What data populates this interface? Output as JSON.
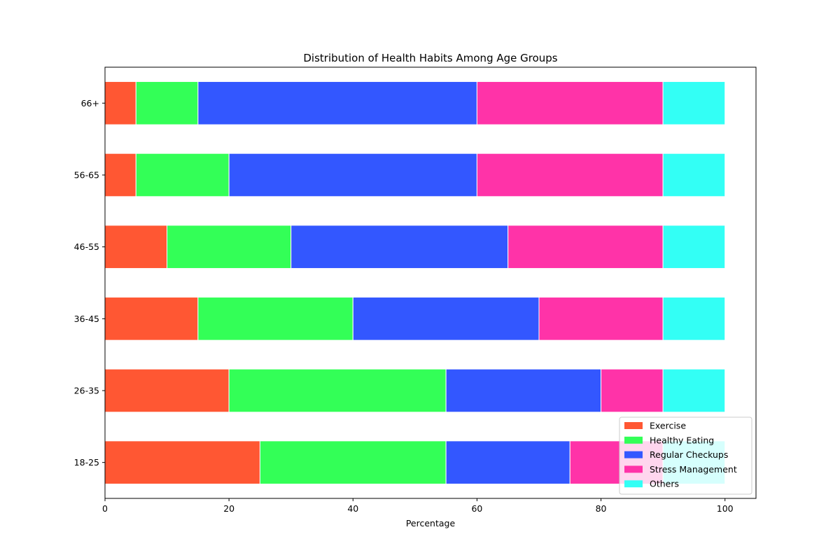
{
  "chart_data": {
    "type": "bar",
    "orientation": "horizontal",
    "stacked": true,
    "title": "Distribution of Health Habits Among Age Groups",
    "xlabel": "Percentage",
    "ylabel": "",
    "xlim": [
      0,
      105
    ],
    "xticks": [
      0,
      20,
      40,
      60,
      80,
      100
    ],
    "categories": [
      "18-25",
      "26-35",
      "36-45",
      "46-55",
      "56-65",
      "66+"
    ],
    "series": [
      {
        "name": "Exercise",
        "color": "#ff5733",
        "values": [
          25,
          20,
          15,
          10,
          5,
          5
        ]
      },
      {
        "name": "Healthy Eating",
        "color": "#33ff57",
        "values": [
          30,
          35,
          25,
          20,
          15,
          10
        ]
      },
      {
        "name": "Regular Checkups",
        "color": "#3357ff",
        "values": [
          20,
          25,
          30,
          35,
          40,
          45
        ]
      },
      {
        "name": "Stress Management",
        "color": "#ff33a8",
        "values": [
          15,
          10,
          20,
          25,
          30,
          30
        ]
      },
      {
        "name": "Others",
        "color": "#33fff5",
        "values": [
          10,
          10,
          10,
          10,
          10,
          10
        ]
      }
    ],
    "grid": false,
    "legend_position": "lower-right"
  }
}
